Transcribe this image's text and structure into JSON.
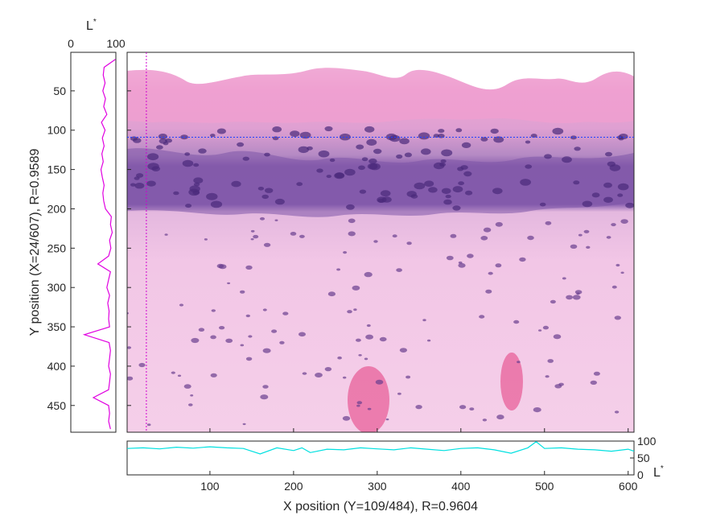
{
  "chart_data": [
    {
      "type": "line",
      "name": "vertical-profile",
      "ylabel": "Y position (X=24/607), R=0.9589",
      "xlabel_main": "L",
      "xlabel_sup": "*",
      "xlim": [
        0,
        100
      ],
      "ylim": [
        484,
        1
      ],
      "xticks": [
        "0",
        "100"
      ],
      "yticks": [
        "50",
        "100",
        "150",
        "200",
        "250",
        "300",
        "350",
        "400",
        "450"
      ],
      "line_color": "#e000e0",
      "y": [
        10,
        20,
        30,
        40,
        50,
        60,
        70,
        80,
        90,
        100,
        110,
        120,
        130,
        140,
        150,
        160,
        170,
        180,
        190,
        200,
        210,
        220,
        230,
        240,
        250,
        260,
        270,
        280,
        290,
        300,
        310,
        320,
        330,
        340,
        350,
        360,
        370,
        380,
        390,
        400,
        410,
        420,
        430,
        440,
        450,
        460,
        470,
        480
      ],
      "x": [
        99,
        74,
        72,
        76,
        71,
        77,
        73,
        80,
        68,
        76,
        70,
        74,
        69,
        72,
        67,
        70,
        74,
        71,
        73,
        77,
        90,
        88,
        92,
        86,
        89,
        84,
        60,
        88,
        84,
        80,
        86,
        82,
        85,
        84,
        86,
        30,
        85,
        88,
        86,
        84,
        88,
        86,
        84,
        50,
        84,
        86,
        84,
        88
      ]
    },
    {
      "type": "line",
      "name": "horizontal-profile",
      "xlabel": "X position (Y=109/484), R=0.9604",
      "ylabel_main": "L",
      "ylabel_sup": "*",
      "xlim": [
        1,
        607
      ],
      "ylim": [
        0,
        100
      ],
      "xticks": [
        "100",
        "200",
        "300",
        "400",
        "500",
        "600"
      ],
      "yticks": [
        "0",
        "50",
        "100"
      ],
      "line_color": "#00e0e0",
      "x": [
        0,
        20,
        40,
        60,
        80,
        100,
        120,
        140,
        160,
        180,
        200,
        210,
        220,
        240,
        260,
        280,
        300,
        320,
        340,
        360,
        380,
        400,
        420,
        440,
        460,
        480,
        490,
        500,
        520,
        540,
        560,
        580,
        600,
        607
      ],
      "y": [
        78,
        80,
        77,
        82,
        79,
        83,
        80,
        78,
        62,
        80,
        72,
        80,
        66,
        76,
        74,
        80,
        77,
        74,
        80,
        76,
        72,
        78,
        80,
        74,
        64,
        80,
        98,
        78,
        80,
        76,
        74,
        70,
        76,
        70
      ]
    }
  ],
  "overlay": {
    "cursor_x": 24,
    "cursor_y": 109,
    "vertical_cursor_color": "#d000d0",
    "horizontal_cursor_color": "#2040ff"
  }
}
